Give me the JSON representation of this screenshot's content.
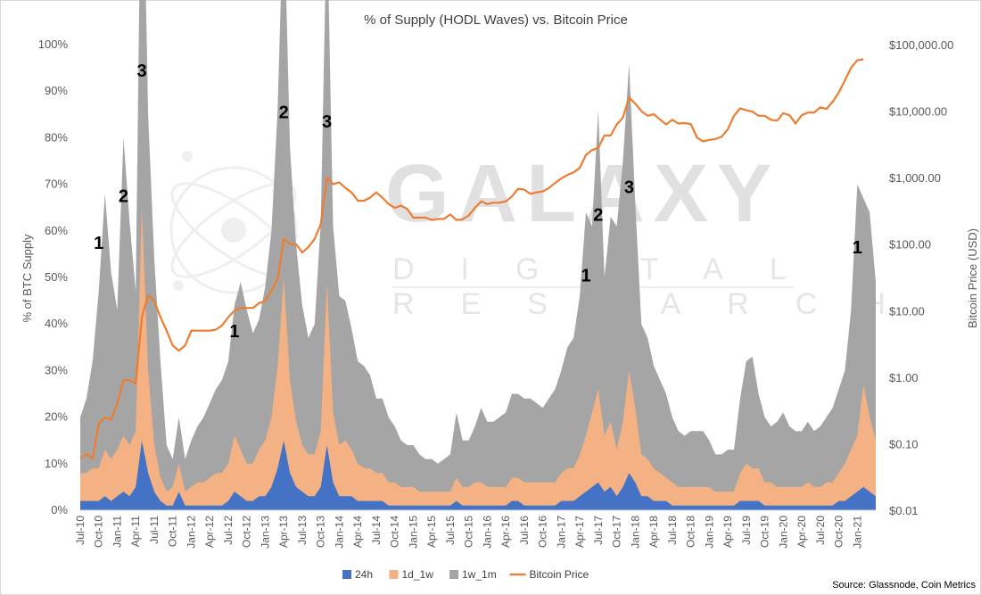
{
  "chart_data": {
    "type": "area",
    "title": "% of Supply (HODL Waves) vs. Bitcoin Price",
    "ylabel": "% of BTC Supply",
    "y2label": "Bitcoin Price (USD)",
    "source": "Source: Glassnode, Coin Metrics",
    "watermark": {
      "line1": "GALAXY",
      "line2": "DIGITAL",
      "line3": "RESEARCH"
    },
    "ylim": [
      0,
      100
    ],
    "y2lim": [
      0.01,
      100000
    ],
    "y2scale": "log",
    "ytick_labels": [
      "0%",
      "10%",
      "20%",
      "30%",
      "40%",
      "50%",
      "60%",
      "70%",
      "80%",
      "90%",
      "100%"
    ],
    "y2tick_labels": [
      "$0.01",
      "$0.10",
      "$1.00",
      "$10.00",
      "$100.00",
      "$1,000.00",
      "$10,000.00",
      "$100,000.00"
    ],
    "xtick_labels": [
      "Jul-10",
      "Oct-10",
      "Jan-11",
      "Apr-11",
      "Jul-11",
      "Oct-11",
      "Jan-12",
      "Apr-12",
      "Jul-12",
      "Oct-12",
      "Jan-13",
      "Apr-13",
      "Jul-13",
      "Oct-13",
      "Jan-14",
      "Apr-14",
      "Jul-14",
      "Oct-14",
      "Jan-15",
      "Apr-15",
      "Jul-15",
      "Oct-15",
      "Jan-16",
      "Apr-16",
      "Jul-16",
      "Oct-16",
      "Jan-17",
      "Apr-17",
      "Jul-17",
      "Oct-17",
      "Jan-18",
      "Apr-18",
      "Jul-18",
      "Oct-18",
      "Jan-19",
      "Apr-19",
      "Jul-19",
      "Oct-19",
      "Jan-20",
      "Apr-20",
      "Jul-20",
      "Oct-20",
      "Jan-21"
    ],
    "x": [
      "2010-07",
      "2010-08",
      "2010-09",
      "2010-10",
      "2010-11",
      "2010-12",
      "2011-01",
      "2011-02",
      "2011-03",
      "2011-04",
      "2011-05",
      "2011-06",
      "2011-07",
      "2011-08",
      "2011-09",
      "2011-10",
      "2011-11",
      "2011-12",
      "2012-01",
      "2012-02",
      "2012-03",
      "2012-04",
      "2012-05",
      "2012-06",
      "2012-07",
      "2012-08",
      "2012-09",
      "2012-10",
      "2012-11",
      "2012-12",
      "2013-01",
      "2013-02",
      "2013-03",
      "2013-04",
      "2013-05",
      "2013-06",
      "2013-07",
      "2013-08",
      "2013-09",
      "2013-10",
      "2013-11",
      "2013-12",
      "2014-01",
      "2014-02",
      "2014-03",
      "2014-04",
      "2014-05",
      "2014-06",
      "2014-07",
      "2014-08",
      "2014-09",
      "2014-10",
      "2014-11",
      "2014-12",
      "2015-01",
      "2015-02",
      "2015-03",
      "2015-04",
      "2015-05",
      "2015-06",
      "2015-07",
      "2015-08",
      "2015-09",
      "2015-10",
      "2015-11",
      "2015-12",
      "2016-01",
      "2016-02",
      "2016-03",
      "2016-04",
      "2016-05",
      "2016-06",
      "2016-07",
      "2016-08",
      "2016-09",
      "2016-10",
      "2016-11",
      "2016-12",
      "2017-01",
      "2017-02",
      "2017-03",
      "2017-04",
      "2017-05",
      "2017-06",
      "2017-07",
      "2017-08",
      "2017-09",
      "2017-10",
      "2017-11",
      "2017-12",
      "2018-01",
      "2018-02",
      "2018-03",
      "2018-04",
      "2018-05",
      "2018-06",
      "2018-07",
      "2018-08",
      "2018-09",
      "2018-10",
      "2018-11",
      "2018-12",
      "2019-01",
      "2019-02",
      "2019-03",
      "2019-04",
      "2019-05",
      "2019-06",
      "2019-07",
      "2019-08",
      "2019-09",
      "2019-10",
      "2019-11",
      "2019-12",
      "2020-01",
      "2020-02",
      "2020-03",
      "2020-04",
      "2020-05",
      "2020-06",
      "2020-07",
      "2020-08",
      "2020-09",
      "2020-10",
      "2020-11",
      "2020-12",
      "2021-01",
      "2021-02",
      "2021-03",
      "2021-04"
    ],
    "series": [
      {
        "name": "24h",
        "color": "#4472c4",
        "values": [
          2,
          2,
          2,
          2,
          3,
          2,
          3,
          4,
          3,
          5,
          15,
          8,
          4,
          2,
          1,
          1,
          4,
          1,
          1,
          1,
          1,
          1,
          1,
          1,
          2,
          4,
          3,
          2,
          2,
          3,
          3,
          5,
          9,
          15,
          8,
          5,
          4,
          3,
          3,
          5,
          14,
          6,
          3,
          3,
          3,
          2,
          2,
          2,
          2,
          2,
          1,
          1,
          1,
          1,
          1,
          1,
          1,
          1,
          1,
          1,
          1,
          2,
          1,
          1,
          1,
          1,
          1,
          1,
          1,
          1,
          2,
          2,
          1,
          1,
          1,
          1,
          1,
          1,
          2,
          2,
          2,
          3,
          4,
          5,
          6,
          4,
          5,
          3,
          5,
          8,
          6,
          3,
          3,
          2,
          2,
          2,
          1,
          1,
          1,
          1,
          1,
          1,
          1,
          1,
          1,
          1,
          1,
          2,
          2,
          2,
          2,
          1,
          1,
          1,
          1,
          1,
          1,
          1,
          1,
          1,
          1,
          1,
          1,
          2,
          2,
          3,
          4,
          5,
          4,
          3
        ]
      },
      {
        "name": "1d_1w",
        "color": "#f4b183",
        "values": [
          6,
          6,
          7,
          7,
          10,
          9,
          10,
          12,
          11,
          12,
          50,
          22,
          10,
          5,
          3,
          4,
          6,
          3,
          4,
          5,
          5,
          6,
          7,
          7,
          8,
          12,
          10,
          8,
          8,
          10,
          12,
          15,
          22,
          35,
          20,
          14,
          10,
          9,
          9,
          12,
          35,
          15,
          11,
          12,
          10,
          8,
          7,
          7,
          6,
          6,
          5,
          5,
          4,
          4,
          4,
          3,
          3,
          3,
          3,
          3,
          3,
          5,
          4,
          4,
          5,
          5,
          4,
          4,
          4,
          4,
          5,
          5,
          5,
          5,
          5,
          5,
          5,
          5,
          6,
          7,
          7,
          9,
          12,
          16,
          20,
          12,
          14,
          10,
          14,
          22,
          16,
          9,
          8,
          7,
          6,
          5,
          5,
          4,
          4,
          4,
          4,
          4,
          4,
          3,
          3,
          3,
          3,
          6,
          8,
          7,
          7,
          5,
          5,
          4,
          4,
          4,
          4,
          4,
          5,
          4,
          4,
          5,
          5,
          6,
          8,
          10,
          12,
          22,
          16,
          12
        ]
      },
      {
        "name": "1w_1m",
        "color": "#a5a5a5",
        "values": [
          12,
          16,
          23,
          38,
          55,
          40,
          30,
          64,
          48,
          30,
          91,
          55,
          40,
          25,
          10,
          6,
          10,
          7,
          10,
          12,
          14,
          16,
          18,
          20,
          22,
          28,
          36,
          33,
          28,
          28,
          33,
          40,
          55,
          82,
          50,
          38,
          30,
          25,
          28,
          45,
          80,
          40,
          32,
          30,
          26,
          22,
          22,
          20,
          16,
          16,
          14,
          12,
          10,
          9,
          9,
          8,
          7,
          7,
          6,
          7,
          8,
          14,
          10,
          10,
          12,
          16,
          14,
          14,
          15,
          16,
          18,
          18,
          18,
          18,
          17,
          16,
          18,
          20,
          22,
          26,
          28,
          34,
          48,
          40,
          60,
          34,
          44,
          48,
          56,
          66,
          44,
          28,
          26,
          22,
          20,
          18,
          14,
          12,
          11,
          12,
          12,
          12,
          10,
          8,
          8,
          9,
          9,
          16,
          22,
          24,
          16,
          14,
          12,
          14,
          16,
          13,
          12,
          12,
          13,
          12,
          13,
          14,
          16,
          18,
          20,
          30,
          54,
          40,
          44,
          34
        ]
      }
    ],
    "price": {
      "name": "Bitcoin Price",
      "color": "#ed7d31",
      "values": [
        0.06,
        0.07,
        0.06,
        0.2,
        0.25,
        0.23,
        0.4,
        0.9,
        0.9,
        0.8,
        8,
        17,
        14,
        8,
        5,
        3,
        2.5,
        3,
        5,
        5,
        5,
        5,
        5.2,
        6,
        8,
        10,
        11,
        11,
        11,
        13,
        14,
        20,
        30,
        120,
        100,
        100,
        75,
        90,
        120,
        200,
        1000,
        800,
        850,
        700,
        600,
        450,
        450,
        500,
        600,
        500,
        400,
        350,
        380,
        340,
        250,
        250,
        250,
        230,
        240,
        240,
        280,
        230,
        235,
        270,
        350,
        440,
        400,
        420,
        420,
        440,
        520,
        680,
        660,
        570,
        600,
        620,
        700,
        830,
        970,
        1100,
        1200,
        1400,
        2200,
        2600,
        2800,
        4300,
        4300,
        6300,
        8000,
        16000,
        13000,
        10000,
        8500,
        9000,
        7500,
        6300,
        7400,
        6500,
        6600,
        6400,
        4000,
        3500,
        3700,
        3800,
        4100,
        5300,
        8500,
        11000,
        10300,
        9800,
        8500,
        8500,
        7400,
        7200,
        9300,
        8700,
        6500,
        8700,
        9500,
        9500,
        11400,
        10800,
        13800,
        19000,
        29000,
        45000,
        58000,
        60000
      ]
    },
    "annotations": [
      {
        "text": "1",
        "x": "2010-10",
        "y": 55
      },
      {
        "text": "2",
        "x": "2011-02",
        "y": 65
      },
      {
        "text": "3",
        "x": "2011-05",
        "y": 92
      },
      {
        "text": "1",
        "x": "2012-08",
        "y": 36
      },
      {
        "text": "2",
        "x": "2013-04",
        "y": 83
      },
      {
        "text": "3",
        "x": "2013-11",
        "y": 81
      },
      {
        "text": "1",
        "x": "2017-05",
        "y": 48
      },
      {
        "text": "2",
        "x": "2017-07",
        "y": 61
      },
      {
        "text": "3",
        "x": "2017-12",
        "y": 67
      },
      {
        "text": "1",
        "x": "2021-01",
        "y": 54
      }
    ],
    "legend_position": "bottom",
    "grid": false
  }
}
